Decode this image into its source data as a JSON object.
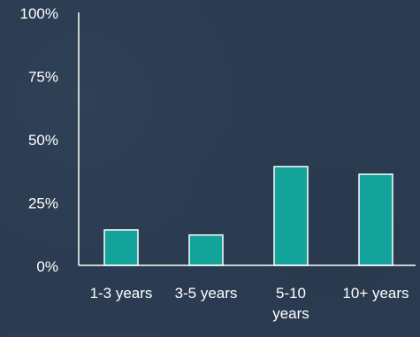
{
  "colors": {
    "background": "#2b3c52",
    "bar_fill": "#13a39a",
    "bar_stroke": "#ffffff",
    "axis": "#ffffff",
    "text": "#ffffff"
  },
  "chart_data": {
    "type": "bar",
    "title": "",
    "xlabel": "",
    "ylabel": "",
    "categories": [
      [
        "1-3 years"
      ],
      [
        "3-5 years"
      ],
      [
        "5-10",
        "years"
      ],
      [
        "10+ years"
      ]
    ],
    "values": [
      14,
      12,
      39,
      36
    ],
    "ylim": [
      0,
      100
    ],
    "y_ticks": [
      0,
      25,
      50,
      75,
      100
    ],
    "y_tick_labels": [
      "0%",
      "25%",
      "50%",
      "75%",
      "100%"
    ],
    "grid": false,
    "legend": "none"
  }
}
